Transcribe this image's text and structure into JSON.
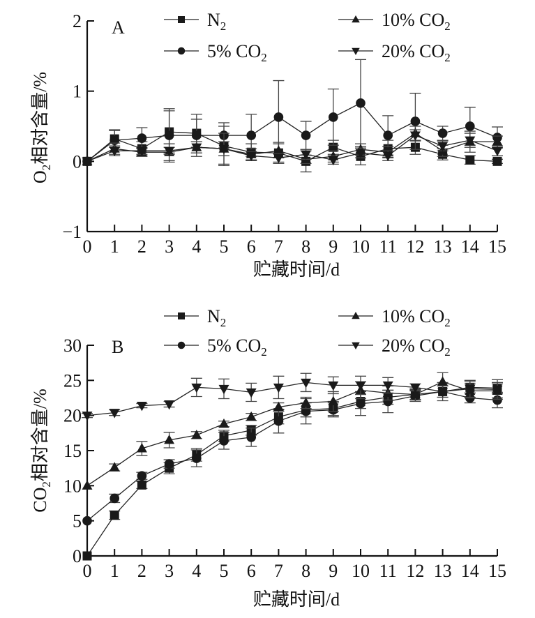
{
  "chart_data": [
    {
      "type": "line",
      "panel_label": "A",
      "title": "",
      "xlabel": "贮藏时间/d",
      "ylabel_main": "O",
      "ylabel_sub": "2",
      "ylabel_rest": "相对含量/%",
      "x": [
        0,
        1,
        2,
        3,
        4,
        5,
        6,
        7,
        8,
        9,
        10,
        11,
        12,
        13,
        14,
        15
      ],
      "xticks": [
        "0",
        "1",
        "2",
        "3",
        "4",
        "5",
        "6",
        "7",
        "8",
        "9",
        "10",
        "11",
        "12",
        "13",
        "14",
        "15"
      ],
      "ylim": [
        -1,
        2
      ],
      "yticks": [
        -1,
        0,
        1,
        2
      ],
      "ytick_labels": [
        "−1",
        "0",
        "1",
        "2"
      ],
      "grid": false,
      "legend_position": "top",
      "series": [
        {
          "name": "N2",
          "label_main": "N",
          "label_sub": "2",
          "marker": "square",
          "values": [
            0,
            0.32,
            0.18,
            0.42,
            0.4,
            0.22,
            0.13,
            0.12,
            0.0,
            0.2,
            0.07,
            0.18,
            0.2,
            0.1,
            0.02,
            0.0
          ],
          "errors": [
            0,
            0.12,
            0.1,
            0.3,
            0.2,
            0.28,
            0.12,
            0.15,
            0.15,
            0.1,
            0.12,
            0.12,
            0.1,
            0.08,
            0.06,
            0.03
          ]
        },
        {
          "name": "5% CO2",
          "label_main": "5% CO",
          "label_sub": "2",
          "marker": "circle",
          "values": [
            0,
            0.3,
            0.33,
            0.37,
            0.37,
            0.37,
            0.37,
            0.63,
            0.37,
            0.63,
            0.83,
            0.37,
            0.57,
            0.4,
            0.5,
            0.34
          ],
          "errors": [
            0,
            0.15,
            0.15,
            0.38,
            0.3,
            0.18,
            0.3,
            0.52,
            0.2,
            0.4,
            0.62,
            0.28,
            0.4,
            0.1,
            0.27,
            0.15
          ]
        },
        {
          "name": "10% CO2",
          "label_main": "10% CO",
          "label_sub": "2",
          "marker": "triangle-up",
          "values": [
            0,
            0.18,
            0.13,
            0.13,
            0.2,
            0.18,
            0.1,
            0.15,
            0.03,
            0.07,
            0.17,
            0.13,
            0.4,
            0.15,
            0.28,
            0.28
          ],
          "errors": [
            0,
            0.08,
            0.06,
            0.12,
            0.08,
            0.22,
            0.08,
            0.1,
            0.06,
            0.08,
            0.08,
            0.08,
            0.1,
            0.08,
            0.15,
            0.08
          ]
        },
        {
          "name": "20% CO2",
          "label_main": "20% CO",
          "label_sub": "2",
          "marker": "triangle-down",
          "values": [
            0,
            0.15,
            0.15,
            0.15,
            0.2,
            0.18,
            0.08,
            0.05,
            0.1,
            0.02,
            0.12,
            0.08,
            0.37,
            0.22,
            0.3,
            0.15
          ],
          "errors": [
            0,
            0.07,
            0.05,
            0.05,
            0.08,
            0.1,
            0.06,
            0.06,
            0.07,
            0.06,
            0.07,
            0.07,
            0.08,
            0.07,
            0.1,
            0.07
          ]
        }
      ]
    },
    {
      "type": "line",
      "panel_label": "B",
      "title": "",
      "xlabel": "贮藏时间/d",
      "ylabel_main": "CO",
      "ylabel_sub": "2",
      "ylabel_rest": "相对含量/%",
      "x": [
        0,
        1,
        2,
        3,
        4,
        5,
        6,
        7,
        8,
        9,
        10,
        11,
        12,
        13,
        14,
        15
      ],
      "xticks": [
        "0",
        "1",
        "2",
        "3",
        "4",
        "5",
        "6",
        "7",
        "8",
        "9",
        "10",
        "11",
        "12",
        "13",
        "14",
        "15"
      ],
      "ylim": [
        0,
        30
      ],
      "yticks": [
        0,
        5,
        10,
        15,
        20,
        25,
        30
      ],
      "ytick_labels": [
        "0",
        "5",
        "10",
        "15",
        "20",
        "25",
        "30"
      ],
      "grid": false,
      "legend_position": "top",
      "series": [
        {
          "name": "N2",
          "label_main": "N",
          "label_sub": "2",
          "marker": "square",
          "values": [
            0,
            5.8,
            10.1,
            12.5,
            14.4,
            17.1,
            17.9,
            19.8,
            20.8,
            21.0,
            22.0,
            22.6,
            23.0,
            23.4,
            24.0,
            23.9
          ],
          "errors": [
            0,
            0.6,
            0.5,
            0.8,
            0.9,
            0.8,
            0.7,
            1.0,
            1.0,
            1.0,
            1.0,
            1.0,
            0.7,
            0.8,
            0.8,
            0.8
          ]
        },
        {
          "name": "5% CO2",
          "label_main": "5% CO",
          "label_sub": "2",
          "marker": "circle",
          "values": [
            5.0,
            8.2,
            11.4,
            13.1,
            13.9,
            16.4,
            16.9,
            19.2,
            20.6,
            20.8,
            21.7,
            22.0,
            22.8,
            23.4,
            22.5,
            22.2
          ],
          "errors": [
            0,
            0.6,
            0.5,
            0.6,
            1.2,
            1.2,
            1.3,
            1.7,
            1.8,
            1.0,
            1.7,
            1.6,
            0.8,
            1.3,
            0.7,
            1.1
          ]
        },
        {
          "name": "10% CO2",
          "label_main": "10% CO",
          "label_sub": "2",
          "marker": "triangle-up",
          "values": [
            10.0,
            12.6,
            15.3,
            16.5,
            17.2,
            18.8,
            19.8,
            21.2,
            21.8,
            22.0,
            23.6,
            23.2,
            23.0,
            24.8,
            23.5,
            23.5
          ],
          "errors": [
            0,
            0.5,
            1.0,
            1.1,
            0.5,
            0.4,
            0.5,
            0.6,
            0.8,
            1.4,
            1.2,
            1.0,
            0.8,
            1.3,
            1.0,
            1.0
          ]
        },
        {
          "name": "20% CO2",
          "label_main": "20% CO",
          "label_sub": "2",
          "marker": "triangle-down",
          "values": [
            20.0,
            20.4,
            21.4,
            21.6,
            24.0,
            23.8,
            23.3,
            24.0,
            24.7,
            24.3,
            24.3,
            24.3,
            24.0,
            23.4,
            23.8,
            23.7
          ],
          "errors": [
            0.3,
            0.4,
            0.3,
            0.4,
            1.3,
            1.4,
            1.3,
            1.6,
            1.3,
            1.2,
            1.3,
            1.1,
            0.5,
            0.8,
            1.2,
            1.4
          ]
        }
      ]
    }
  ]
}
